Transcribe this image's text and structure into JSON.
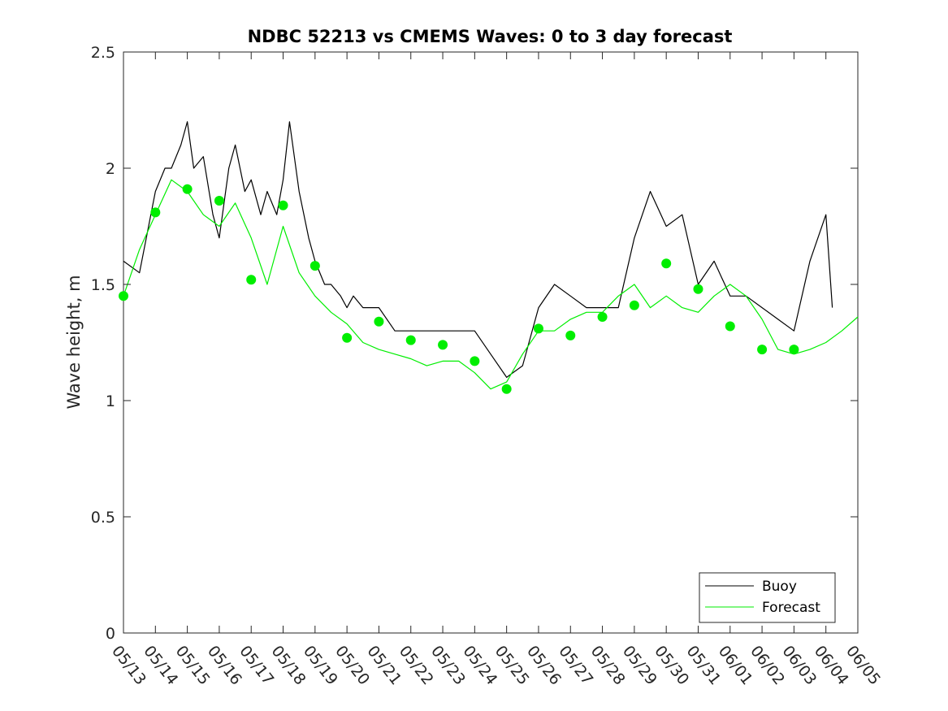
{
  "chart_data": {
    "type": "line",
    "title": "NDBC 52213 vs CMEMS Waves: 0 to 3 day forecast",
    "xlabel": "",
    "ylabel": "Wave height, m",
    "x_ticks": [
      "05/13",
      "05/14",
      "05/15",
      "05/16",
      "05/17",
      "05/18",
      "05/19",
      "05/20",
      "05/21",
      "05/22",
      "05/23",
      "05/24",
      "05/25",
      "05/26",
      "05/27",
      "05/28",
      "05/29",
      "05/30",
      "05/31",
      "06/01",
      "06/02",
      "06/03",
      "06/04",
      "06/05"
    ],
    "xlim_days": [
      0,
      23
    ],
    "ylim": [
      0,
      2.5
    ],
    "y_ticks": [
      0,
      0.5,
      1,
      1.5,
      2,
      2.5
    ],
    "y_tick_labels": [
      "0",
      "0.5",
      "1",
      "1.5",
      "2",
      "2.5"
    ],
    "grid": false,
    "legend_position": "bottom-right",
    "colors": {
      "buoy": "#000000",
      "forecast": "#00ee00",
      "axes": "#262626"
    },
    "series": [
      {
        "name": "Buoy",
        "x_days": [
          0.0,
          0.5,
          1.0,
          1.3,
          1.5,
          1.8,
          2.0,
          2.2,
          2.5,
          2.8,
          3.0,
          3.3,
          3.5,
          3.8,
          4.0,
          4.3,
          4.5,
          4.8,
          5.0,
          5.2,
          5.5,
          5.8,
          6.0,
          6.3,
          6.5,
          6.8,
          7.0,
          7.2,
          7.5,
          7.8,
          8.0,
          8.5,
          9.0,
          9.5,
          10.0,
          10.5,
          11.0,
          11.5,
          12.0,
          12.5,
          13.0,
          13.5,
          14.0,
          14.5,
          15.0,
          15.5,
          16.0,
          16.5,
          17.0,
          17.5,
          18.0,
          18.5,
          19.0,
          19.5,
          20.0,
          20.5,
          21.0,
          21.5,
          22.0,
          22.2
        ],
        "values": [
          1.6,
          1.55,
          1.9,
          2.0,
          2.0,
          2.1,
          2.2,
          2.0,
          2.05,
          1.8,
          1.7,
          2.0,
          2.1,
          1.9,
          1.95,
          1.8,
          1.9,
          1.8,
          1.95,
          2.2,
          1.9,
          1.7,
          1.6,
          1.5,
          1.5,
          1.45,
          1.4,
          1.45,
          1.4,
          1.4,
          1.4,
          1.3,
          1.3,
          1.3,
          1.3,
          1.3,
          1.3,
          1.2,
          1.1,
          1.15,
          1.4,
          1.5,
          1.45,
          1.4,
          1.4,
          1.4,
          1.7,
          1.9,
          1.75,
          1.8,
          1.5,
          1.6,
          1.45,
          1.45,
          1.4,
          1.35,
          1.3,
          1.6,
          1.8,
          1.4
        ]
      },
      {
        "name": "Forecast",
        "x_days": [
          0.0,
          0.5,
          1.0,
          1.5,
          2.0,
          2.5,
          3.0,
          3.5,
          4.0,
          4.5,
          5.0,
          5.5,
          6.0,
          6.5,
          7.0,
          7.5,
          8.0,
          8.5,
          9.0,
          9.5,
          10.0,
          10.5,
          11.0,
          11.5,
          12.0,
          12.5,
          13.0,
          13.5,
          14.0,
          14.5,
          15.0,
          15.5,
          16.0,
          16.5,
          17.0,
          17.5,
          18.0,
          18.5,
          19.0,
          19.5,
          20.0,
          20.5,
          21.0,
          21.5,
          22.0,
          22.5,
          23.0
        ],
        "values": [
          1.45,
          1.65,
          1.8,
          1.95,
          1.9,
          1.8,
          1.75,
          1.85,
          1.7,
          1.5,
          1.75,
          1.55,
          1.45,
          1.38,
          1.33,
          1.25,
          1.22,
          1.2,
          1.18,
          1.15,
          1.17,
          1.17,
          1.12,
          1.05,
          1.08,
          1.2,
          1.3,
          1.3,
          1.35,
          1.38,
          1.38,
          1.45,
          1.5,
          1.4,
          1.45,
          1.4,
          1.38,
          1.45,
          1.5,
          1.45,
          1.35,
          1.22,
          1.2,
          1.22,
          1.25,
          1.3,
          1.36
        ]
      }
    ],
    "markers": {
      "series": "Forecast",
      "x_days": [
        0,
        1,
        2,
        3,
        4,
        5,
        6,
        7,
        8,
        9,
        10,
        11,
        12,
        13,
        14,
        15,
        16,
        17,
        18,
        19,
        20,
        21
      ],
      "values": [
        1.45,
        1.81,
        1.91,
        1.86,
        1.52,
        1.84,
        1.58,
        1.27,
        1.34,
        1.26,
        1.24,
        1.17,
        1.05,
        1.31,
        1.28,
        1.36,
        1.41,
        1.59,
        1.48,
        1.32,
        1.22,
        1.22
      ]
    }
  },
  "legend": {
    "items": [
      "Buoy",
      "Forecast"
    ]
  }
}
